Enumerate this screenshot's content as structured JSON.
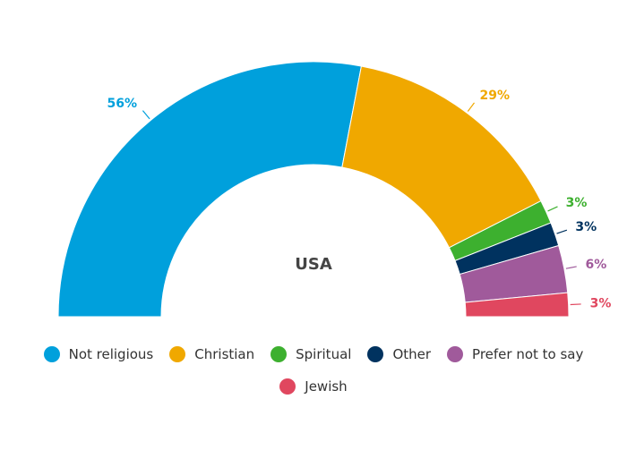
{
  "chart_data": {
    "type": "donut",
    "center_label": "USA",
    "categories": [
      "Not religious",
      "Christian",
      "Spiritual",
      "Other",
      "Prefer not to say",
      "Jewish"
    ],
    "values": [
      56,
      29,
      3,
      3,
      6,
      3
    ],
    "value_labels": [
      "56%",
      "29%",
      "3%",
      "3%",
      "6%",
      "3%"
    ],
    "colors": [
      "#00a0dc",
      "#f0a800",
      "#3db02f",
      "#00325f",
      "#a05a9b",
      "#e0475f"
    ]
  }
}
